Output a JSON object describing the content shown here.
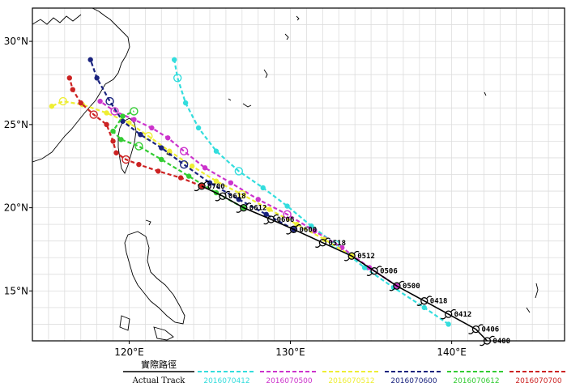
{
  "map": {
    "lon_ticks": [
      "120°E",
      "130°E",
      "140°E"
    ],
    "lat_ticks": [
      "30°N",
      "25°N",
      "20°N",
      "15°N"
    ],
    "lon_range": [
      114,
      147
    ],
    "lat_range": [
      12,
      32
    ]
  },
  "actual_track": {
    "label_cjk": "實際路徑",
    "label_en": "Actual Track",
    "color": "#000000",
    "points": [
      {
        "lon": 142.2,
        "lat": 12.0,
        "time": "0400"
      },
      {
        "lon": 141.5,
        "lat": 12.7,
        "time": "0406"
      },
      {
        "lon": 139.8,
        "lat": 13.6,
        "time": "0412"
      },
      {
        "lon": 138.3,
        "lat": 14.4,
        "time": "0418"
      },
      {
        "lon": 136.6,
        "lat": 15.3,
        "time": "0500"
      },
      {
        "lon": 135.2,
        "lat": 16.2,
        "time": "0506"
      },
      {
        "lon": 133.8,
        "lat": 17.1,
        "time": "0512"
      },
      {
        "lon": 132.0,
        "lat": 17.9,
        "time": "0518"
      },
      {
        "lon": 130.2,
        "lat": 18.7,
        "time": "0600"
      },
      {
        "lon": 128.8,
        "lat": 19.3,
        "time": "0606"
      },
      {
        "lon": 127.1,
        "lat": 20.0,
        "time": "0612"
      },
      {
        "lon": 125.8,
        "lat": 20.7,
        "time": "0618"
      },
      {
        "lon": 124.5,
        "lat": 21.3,
        "time": "0700"
      }
    ]
  },
  "forecast_runs": [
    {
      "label": "2016070412",
      "color": "#33dddd",
      "points": [
        [
          139.8,
          13.0
        ],
        [
          138.3,
          14.0
        ],
        [
          136.4,
          15.2
        ],
        [
          134.6,
          16.4
        ],
        [
          132.8,
          17.8
        ],
        [
          131.3,
          18.9
        ],
        [
          129.8,
          20.1
        ],
        [
          128.3,
          21.2
        ],
        [
          126.8,
          22.2
        ],
        [
          125.4,
          23.4
        ],
        [
          124.3,
          24.8
        ],
        [
          123.5,
          26.3
        ],
        [
          123.0,
          27.8
        ],
        [
          122.8,
          28.9
        ]
      ]
    },
    {
      "label": "2016070500",
      "color": "#cc33cc",
      "points": [
        [
          136.6,
          15.3
        ],
        [
          134.9,
          16.4
        ],
        [
          133.2,
          17.6
        ],
        [
          131.5,
          18.6
        ],
        [
          129.8,
          19.6
        ],
        [
          128.0,
          20.5
        ],
        [
          126.3,
          21.5
        ],
        [
          124.7,
          22.4
        ],
        [
          123.4,
          23.4
        ],
        [
          122.4,
          24.2
        ],
        [
          121.4,
          24.8
        ],
        [
          120.3,
          25.3
        ],
        [
          119.1,
          25.8
        ],
        [
          118.2,
          26.4
        ]
      ]
    },
    {
      "label": "2016070512",
      "color": "#eeee33",
      "points": [
        [
          133.8,
          17.1
        ],
        [
          132.1,
          18.1
        ],
        [
          130.4,
          19.0
        ],
        [
          128.7,
          19.9
        ],
        [
          127.0,
          20.8
        ],
        [
          125.4,
          21.6
        ],
        [
          123.9,
          22.5
        ],
        [
          122.5,
          23.4
        ],
        [
          121.2,
          24.3
        ],
        [
          120.0,
          25.1
        ],
        [
          118.6,
          25.7
        ],
        [
          117.1,
          26.2
        ],
        [
          115.9,
          26.4
        ],
        [
          115.2,
          26.1
        ]
      ]
    },
    {
      "label": "2016070600",
      "color": "#1a237e",
      "points": [
        [
          130.2,
          18.7
        ],
        [
          128.5,
          19.6
        ],
        [
          126.8,
          20.5
        ],
        [
          125.0,
          21.5
        ],
        [
          123.4,
          22.6
        ],
        [
          122.0,
          23.6
        ],
        [
          120.7,
          24.4
        ],
        [
          119.6,
          25.2
        ],
        [
          118.8,
          26.4
        ],
        [
          118.0,
          27.8
        ],
        [
          117.6,
          28.9
        ]
      ]
    },
    {
      "label": "2016070612",
      "color": "#33cc33",
      "points": [
        [
          127.1,
          20.0
        ],
        [
          125.4,
          20.9
        ],
        [
          123.7,
          21.9
        ],
        [
          122.0,
          22.9
        ],
        [
          120.6,
          23.7
        ],
        [
          119.5,
          24.1
        ],
        [
          119.0,
          24.6
        ],
        [
          119.6,
          25.5
        ],
        [
          120.3,
          25.8
        ]
      ]
    },
    {
      "label": "2016070700",
      "color": "#cc2222",
      "points": [
        [
          124.5,
          21.3
        ],
        [
          123.2,
          21.8
        ],
        [
          121.8,
          22.2
        ],
        [
          120.6,
          22.6
        ],
        [
          119.8,
          22.9
        ],
        [
          119.2,
          23.3
        ],
        [
          119.0,
          24.0
        ],
        [
          118.6,
          25.0
        ],
        [
          117.8,
          25.6
        ],
        [
          117.0,
          26.3
        ],
        [
          116.5,
          27.1
        ],
        [
          116.3,
          27.8
        ]
      ]
    }
  ]
}
